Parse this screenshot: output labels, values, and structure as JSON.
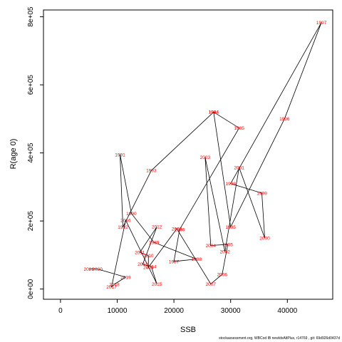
{
  "chart_data": {
    "type": "line",
    "xlabel": "SSB",
    "ylabel": "R(age 0)",
    "xlim": [
      -3000,
      48000
    ],
    "ylim": [
      -30000,
      820000
    ],
    "x_ticks": [
      0,
      10000,
      20000,
      30000,
      40000
    ],
    "y_ticks": [
      0,
      200000,
      400000,
      600000,
      800000
    ],
    "x_tick_labels": [
      "0",
      "10000",
      "20000",
      "30000",
      "40000"
    ],
    "y_tick_labels": [
      "0e+00",
      "2e+05",
      "4e+05",
      "6e+05",
      "8e+05"
    ],
    "line_color": "#000000",
    "label_color": "#ff0000",
    "points": [
      {
        "year": "1984",
        "x": 27000,
        "y": 520000
      },
      {
        "year": "1985",
        "x": 31500,
        "y": 473000
      },
      {
        "year": "1986",
        "x": 21000,
        "y": 175000
      },
      {
        "year": "1987",
        "x": 20000,
        "y": 81000
      },
      {
        "year": "1988",
        "x": 24000,
        "y": 88000
      },
      {
        "year": "1989",
        "x": 16500,
        "y": 137000
      },
      {
        "year": "1990",
        "x": 12500,
        "y": 222000
      },
      {
        "year": "1991",
        "x": 10500,
        "y": 395000
      },
      {
        "year": "1992",
        "x": 11000,
        "y": 182000
      },
      {
        "year": "1993",
        "x": 16000,
        "y": 348000
      },
      {
        "year": "1994",
        "x": 27000,
        "y": 520000
      },
      {
        "year": "1995",
        "x": 30000,
        "y": 182000
      },
      {
        "year": "1996",
        "x": 39500,
        "y": 500000
      },
      {
        "year": "1997",
        "x": 46000,
        "y": 783000
      },
      {
        "year": "1998",
        "x": 30000,
        "y": 310000
      },
      {
        "year": "1999",
        "x": 35500,
        "y": 282000
      },
      {
        "year": "2000",
        "x": 36000,
        "y": 150000
      },
      {
        "year": "2001",
        "x": 31500,
        "y": 357000
      },
      {
        "year": "2002",
        "x": 29000,
        "y": 110000
      },
      {
        "year": "2003",
        "x": 25500,
        "y": 387000
      },
      {
        "year": "2004",
        "x": 26500,
        "y": 128000
      },
      {
        "year": "2005",
        "x": 29500,
        "y": 131000
      },
      {
        "year": "2006",
        "x": 28500,
        "y": 43000
      },
      {
        "year": "2007",
        "x": 26500,
        "y": 15000
      },
      {
        "year": "2008",
        "x": 20500,
        "y": 177000
      },
      {
        "year": "2009",
        "x": 15500,
        "y": 64000
      },
      {
        "year": "2010",
        "x": 15500,
        "y": 98000
      },
      {
        "year": "2011",
        "x": 14000,
        "y": 108000
      },
      {
        "year": "2012",
        "x": 17000,
        "y": 183000
      },
      {
        "year": "2013",
        "x": 14500,
        "y": 73000
      },
      {
        "year": "2014",
        "x": 16000,
        "y": 66000
      },
      {
        "year": "2015",
        "x": 17000,
        "y": 15000
      },
      {
        "year": "2016",
        "x": 11500,
        "y": 202000
      },
      {
        "year": "2017",
        "x": 9000,
        "y": 6000
      },
      {
        "year": "2018",
        "x": 9500,
        "y": 14000
      },
      {
        "year": "2019",
        "x": 11500,
        "y": 35000
      },
      {
        "year": "2020",
        "x": 6500,
        "y": 59000
      },
      {
        "year": "2021",
        "x": 5000,
        "y": 59000
      }
    ],
    "path_order": [
      "1984",
      "1985",
      "1986",
      "1987",
      "1988",
      "1989",
      "1990",
      "1991",
      "1992",
      "1993",
      "1994",
      "1995",
      "1996",
      "1997",
      "1998",
      "1999",
      "2000",
      "2001",
      "2002",
      "2003",
      "2004",
      "2005",
      "2006",
      "2007",
      "2008",
      "2009",
      "2010",
      "2011",
      "2012",
      "2013",
      "2014",
      "2015",
      "2016",
      "2017",
      "2018",
      "2019",
      "2020",
      "2021"
    ]
  },
  "footer_text": "stockassessment.org,  WBCod  IB  newIdxAltPlus,  r14769 ,  git:  69d926d0437d"
}
